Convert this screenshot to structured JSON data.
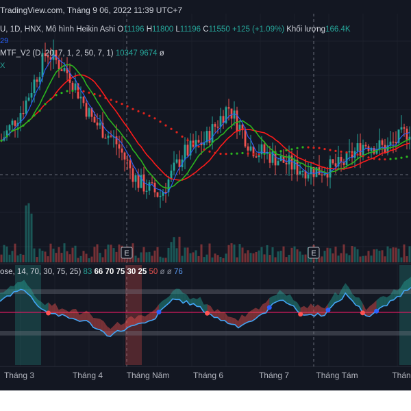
{
  "header": {
    "text": "TradingView.com, Tháng 9 06, 2022 11:39 UTC+7"
  },
  "symbol_line": {
    "prefix": "U, 1D, HNX, Mô hình Heikin Ashi",
    "o_label": "O",
    "o_value": "11196",
    "h_label": "H",
    "h_value": "11800",
    "l_label": "L",
    "l_value": "11196",
    "c_label": "C",
    "c_value": "11550",
    "change": "+125 (+1.09%)",
    "volume_label": "Khối lượng",
    "volume_value": "166.4K",
    "below_fragment": "29"
  },
  "mtf_line": {
    "label": "MTF_V2 (D, 20, 7, 1, 2, 50, 7, 1)",
    "value1": "10347",
    "value2": "9674",
    "null": "ø",
    "below_fragment": "X"
  },
  "osc_line": {
    "label": "ose, 14, 70, 30, 75, 25)",
    "v1": "83",
    "v2": "66",
    "v3": "70",
    "v4": "75",
    "v5": "30",
    "v6": "25",
    "v7": "50",
    "n1": "ø",
    "n2": "ø",
    "v8": "76"
  },
  "earnings_markers": [
    "E",
    "E"
  ],
  "colors": {
    "background": "#131722",
    "up": "#26a69a",
    "down": "#ef5350",
    "sma_red": "#e0231c",
    "sma_green": "#2bb61f",
    "blue_line": "#2962ff",
    "magenta_line": "#d81b60",
    "text": "#d1d4dc"
  },
  "chart_data": {
    "type": "candlestick",
    "style": "heikin-ashi",
    "period": "1D",
    "x_tick_labels": [
      "Tháng 3",
      "Tháng 4",
      "Tháng Năm",
      "Tháng 6",
      "Tháng 7",
      "Tháng Tám",
      "Thán"
    ],
    "price_series": [
      {
        "name": "MTF_V2 line 1",
        "last_value": 10347
      },
      {
        "name": "MTF_V2 line 2",
        "last_value": 9674
      }
    ],
    "price_trend": [
      70,
      95,
      135,
      118,
      85,
      70,
      40,
      30,
      60,
      70,
      95,
      65,
      58,
      50,
      48,
      52,
      68,
      64,
      78
    ],
    "oscillator": {
      "upper_band": 70,
      "lower_band": 30,
      "values": [
        62,
        77,
        52,
        45,
        40,
        25,
        34,
        40,
        65,
        58,
        44,
        35,
        45,
        66,
        47,
        48,
        70,
        45,
        60,
        78
      ]
    }
  }
}
